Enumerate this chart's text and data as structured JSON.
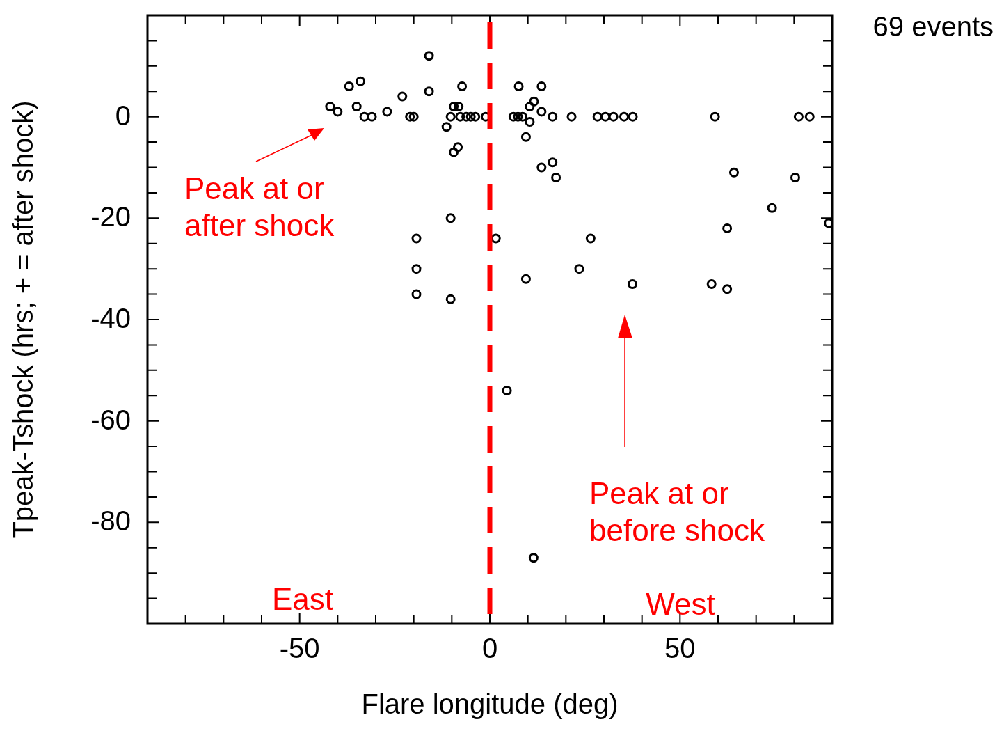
{
  "chart_data": {
    "type": "scatter",
    "xlabel": "Flare longitude (deg)",
    "ylabel": "Tpeak-Tshock (hrs; + = after shock)",
    "marker": "circle",
    "grid": false,
    "legend": false,
    "xlim": [
      -90,
      90
    ],
    "xticks": [
      {
        "value": -80,
        "label": null
      },
      {
        "value": -70,
        "label": null
      },
      {
        "value": -60,
        "label": null
      },
      -50,
      {
        "value": -40,
        "label": null
      },
      {
        "value": -30,
        "label": null
      },
      {
        "value": -20,
        "label": null
      },
      {
        "value": -10,
        "label": null
      },
      0,
      {
        "value": 10,
        "label": null
      },
      {
        "value": 20,
        "label": null
      },
      {
        "value": 30,
        "label": null
      },
      {
        "value": 40,
        "label": null
      },
      50,
      {
        "value": 60,
        "label": null
      },
      {
        "value": 70,
        "label": null
      },
      {
        "value": 80,
        "label": null
      }
    ],
    "ylim": [
      -100,
      20
    ],
    "yticks": [
      {
        "value": -95,
        "label": null
      },
      {
        "value": -90,
        "label": null
      },
      {
        "value": -85,
        "label": null
      },
      -80,
      {
        "value": -75,
        "label": null
      },
      {
        "value": -70,
        "label": null
      },
      {
        "value": -65,
        "label": null
      },
      -60,
      {
        "value": -55,
        "label": null
      },
      {
        "value": -50,
        "label": null
      },
      {
        "value": -45,
        "label": null
      },
      -40,
      {
        "value": -35,
        "label": null
      },
      {
        "value": -30,
        "label": null
      },
      {
        "value": -25,
        "label": null
      },
      -20,
      {
        "value": -15,
        "label": null
      },
      {
        "value": -10,
        "label": null
      },
      {
        "value": -5,
        "label": null
      },
      0,
      {
        "value": 5,
        "label": null
      },
      {
        "value": 10,
        "label": null
      },
      {
        "value": 15,
        "label": null
      }
    ],
    "series": [
      {
        "color": "#000000",
        "x": [
          -42,
          -40,
          -37,
          -34,
          -35,
          -33,
          -31,
          -27,
          -23,
          -21,
          -20,
          -16,
          -16,
          -11.4,
          -10.3,
          -9.5,
          -8.2,
          -7.8,
          -6.2,
          -5,
          -3.8,
          -1.1,
          -7.3,
          -8.4,
          -9.5,
          -10.3,
          -19.3,
          -19.3,
          -19.3,
          -10.3,
          7.6,
          13.6,
          11.6,
          10.5,
          13.6,
          6.2,
          7.4,
          8.6,
          10.5,
          16.5,
          21.5,
          9.5,
          16.5,
          13.6,
          17.4,
          28.3,
          30.4,
          32.5,
          35.3,
          37.6,
          59.2,
          81.2,
          84.1,
          64.2,
          80.3,
          74.2,
          89.1,
          62.4,
          1.6,
          26.5,
          23.5,
          9.5,
          37.5,
          58.3,
          62.4,
          4.5,
          11.5
        ],
        "values": [
          2,
          1,
          6,
          7,
          2,
          0,
          0,
          1,
          4,
          0,
          0,
          12,
          5,
          -2,
          0,
          2,
          2,
          0,
          0,
          0,
          0,
          0,
          6,
          -6,
          -7,
          -20,
          -24,
          -30,
          -35,
          -36,
          6,
          6,
          3,
          2,
          1,
          0,
          0,
          0,
          -1,
          0,
          0,
          -4,
          -9,
          -10,
          -12,
          0,
          0,
          0,
          0,
          0,
          0,
          0,
          0,
          -11,
          -12,
          -18,
          -21,
          -22,
          -24,
          -24,
          -30,
          -32,
          -33,
          -33,
          -34,
          -54,
          -87
        ]
      }
    ],
    "ref_lines": [
      {
        "axis": "x",
        "value": 0,
        "color": "#ff0000",
        "line_style": "dashed"
      }
    ],
    "annotations": [
      "Peak at or\nafter shock",
      "Peak at or\nbefore shock",
      "East",
      "West",
      "69 events"
    ]
  }
}
